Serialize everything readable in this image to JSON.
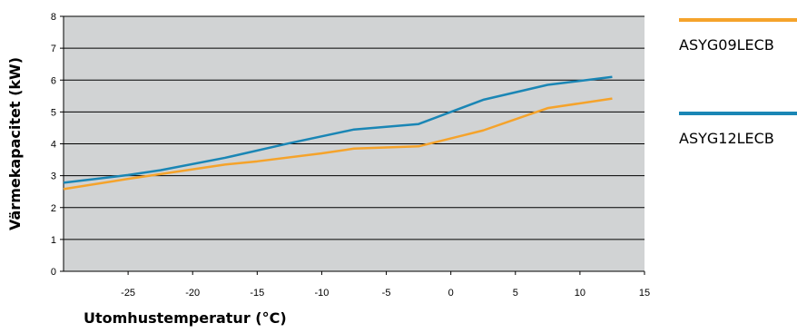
{
  "chart_data": {
    "type": "line",
    "xlabel": "Utomhustemperatur (°C)",
    "ylabel": "Värmekapacitet (kW)",
    "xlim": [
      -30,
      15
    ],
    "ylim": [
      0,
      8
    ],
    "xticks": [
      -25,
      -20,
      -15,
      -10,
      -5,
      0,
      5,
      10,
      15
    ],
    "yticks": [
      0,
      1,
      2,
      3,
      4,
      5,
      6,
      7,
      8
    ],
    "grid": "horizontal",
    "legend_position": "right",
    "series": [
      {
        "name": "ASYG09LECB",
        "color": "#f5a32b",
        "x": [
          -30,
          -25,
          -20,
          -17.5,
          -15,
          -10,
          -7.5,
          -2.5,
          2.5,
          7.5,
          12.5
        ],
        "y": [
          2.58,
          2.9,
          3.2,
          3.35,
          3.45,
          3.7,
          3.85,
          3.92,
          4.42,
          5.12,
          5.42
        ]
      },
      {
        "name": "ASYG12LECB",
        "color": "#1a86b5",
        "x": [
          -30,
          -25,
          -22.5,
          -17.5,
          -12.5,
          -7.5,
          -2.5,
          2.5,
          7.5,
          12.5
        ],
        "y": [
          2.78,
          3.02,
          3.17,
          3.56,
          4.02,
          4.45,
          4.62,
          5.38,
          5.85,
          6.1
        ]
      }
    ]
  }
}
